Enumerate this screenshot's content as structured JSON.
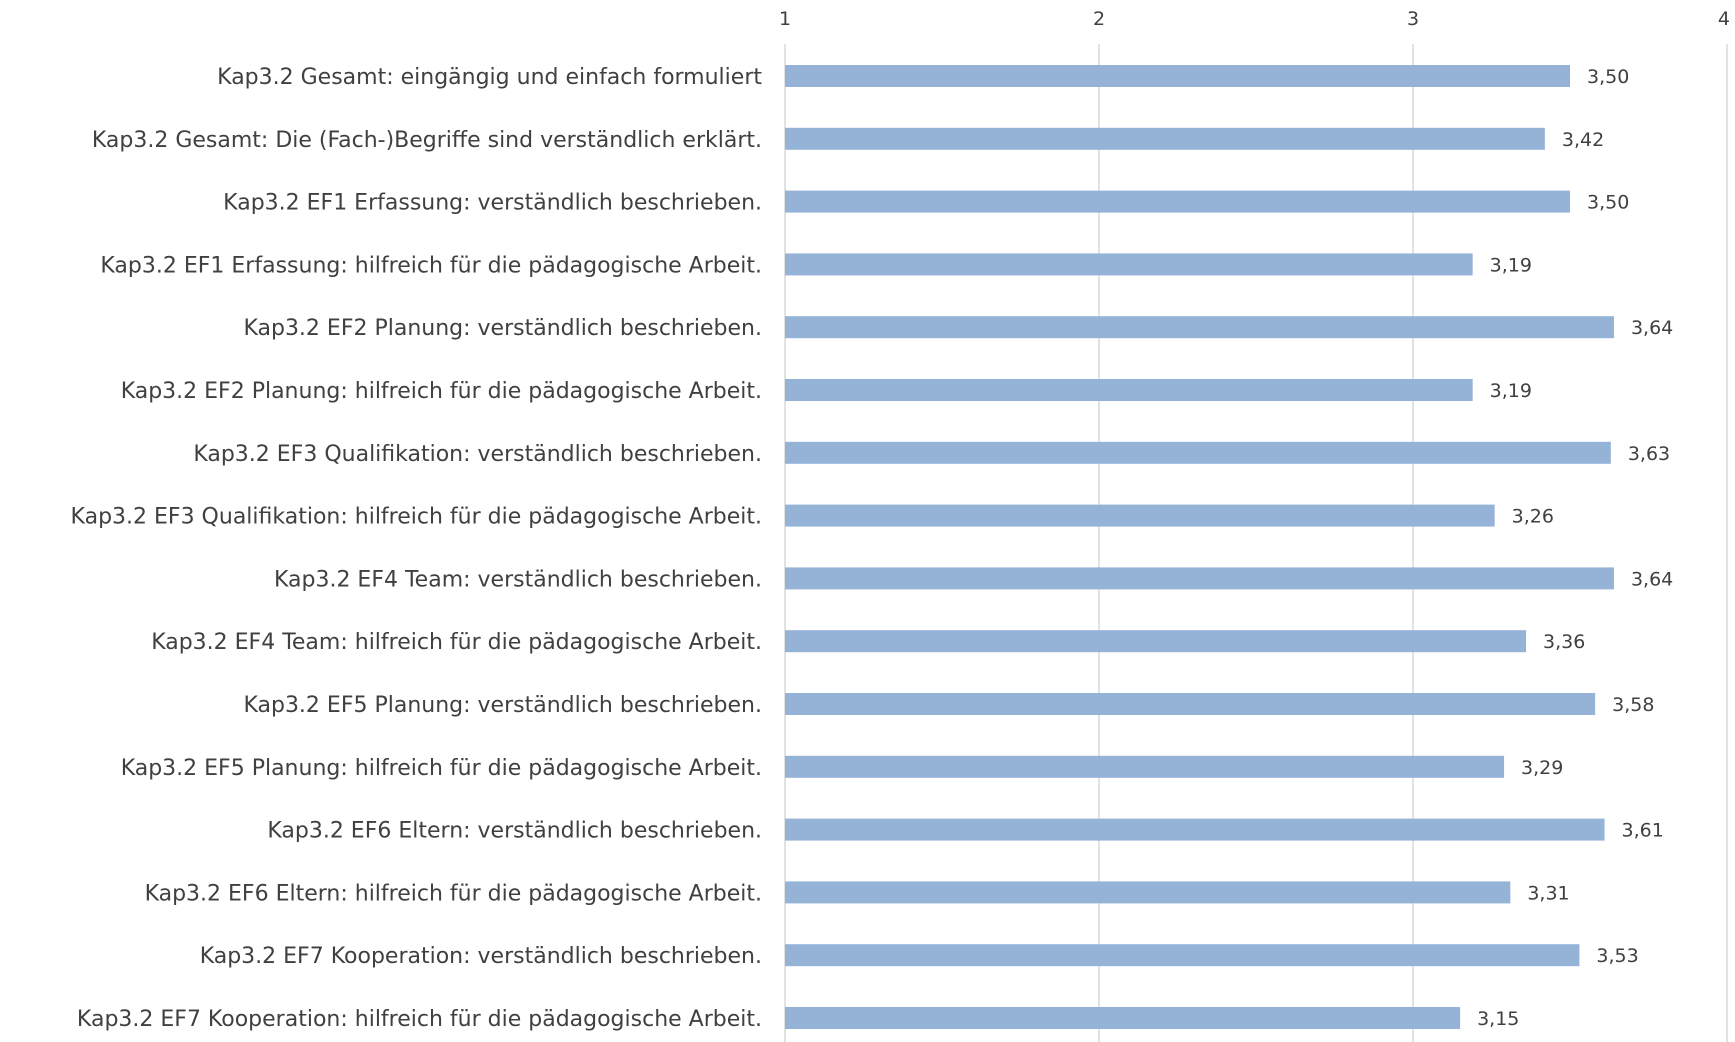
{
  "chart_data": {
    "type": "bar",
    "orientation": "horizontal",
    "title": "",
    "xlabel": "",
    "ylabel": "",
    "xlim": [
      1,
      4
    ],
    "x_ticks": [
      "1",
      "2",
      "3",
      "4"
    ],
    "x_axis_position": "top",
    "grid": true,
    "legend": "none",
    "bar_color": "#95b3d7",
    "categories": [
      "Kap3.2 Gesamt:  eingängig und einfach formuliert",
      "Kap3.2 Gesamt: Die (Fach-)Begriffe sind verständlich erklärt.",
      "Kap3.2 EF1 Erfassung: verständlich beschrieben.",
      "Kap3.2 EF1 Erfassung: hilfreich für die pädagogische Arbeit.",
      "Kap3.2 EF2 Planung: verständlich beschrieben.",
      "Kap3.2 EF2 Planung: hilfreich für die pädagogische Arbeit.",
      "Kap3.2 EF3 Qualifikation: verständlich beschrieben.",
      "Kap3.2 EF3 Qualifikation: hilfreich für die pädagogische Arbeit.",
      "Kap3.2 EF4 Team: verständlich beschrieben.",
      "Kap3.2 EF4 Team: hilfreich für die pädagogische Arbeit.",
      "Kap3.2 EF5 Planung: verständlich beschrieben.",
      "Kap3.2 EF5 Planung: hilfreich für die pädagogische Arbeit.",
      "Kap3.2 EF6 Eltern: verständlich beschrieben.",
      "Kap3.2 EF6 Eltern: hilfreich für die pädagogische Arbeit.",
      "Kap3.2 EF7 Kooperation: verständlich beschrieben.",
      "Kap3.2 EF7 Kooperation: hilfreich für die pädagogische Arbeit."
    ],
    "values": [
      3.5,
      3.42,
      3.5,
      3.19,
      3.64,
      3.19,
      3.63,
      3.26,
      3.64,
      3.36,
      3.58,
      3.29,
      3.61,
      3.31,
      3.53,
      3.15
    ],
    "data_labels": [
      "3,50",
      "3,42",
      "3,50",
      "3,19",
      "3,64",
      "3,19",
      "3,63",
      "3,26",
      "3,64",
      "3,36",
      "3,58",
      "3,29",
      "3,61",
      "3,31",
      "3,53",
      "3,15"
    ]
  }
}
